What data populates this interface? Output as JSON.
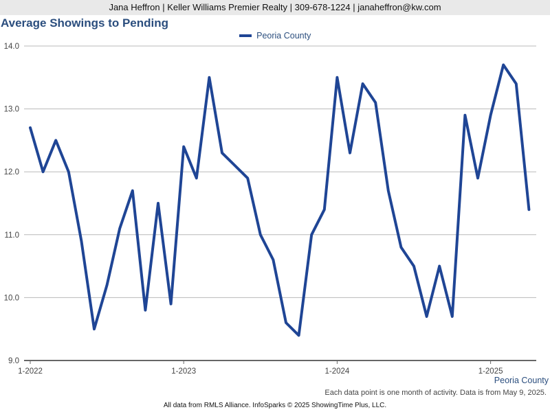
{
  "header": {
    "contact_line": "Jana Heffron | Keller Williams Premier Realty | 309-678-1224 | janaheffron@kw.com"
  },
  "footer": {
    "region_label": "Peoria County",
    "note": "Each data point is one month of activity. Data is from May 9, 2025.",
    "source": "All data from RMLS Alliance. InfoSparks © 2025 ShowingTime Plus, LLC."
  },
  "colors": {
    "line": "#1f4595",
    "title": "#2b4e7e",
    "grid": "#b8b8b8",
    "axis": "#666666"
  },
  "chart_data": {
    "type": "line",
    "title": "Average Showings to Pending",
    "xlabel": "",
    "ylabel": "",
    "ylim": [
      9.0,
      14.0
    ],
    "yticks": [
      "9.0",
      "10.0",
      "11.0",
      "12.0",
      "13.0",
      "14.0"
    ],
    "xtick_labels": [
      {
        "label": "1-2022",
        "index": 0
      },
      {
        "label": "1-2023",
        "index": 12
      },
      {
        "label": "1-2024",
        "index": 24
      },
      {
        "label": "1-2025",
        "index": 36
      }
    ],
    "grid": true,
    "legend_position": "top-center",
    "categories": [
      "1-2022",
      "2-2022",
      "3-2022",
      "4-2022",
      "5-2022",
      "6-2022",
      "7-2022",
      "8-2022",
      "9-2022",
      "10-2022",
      "11-2022",
      "12-2022",
      "1-2023",
      "2-2023",
      "3-2023",
      "4-2023",
      "5-2023",
      "6-2023",
      "7-2023",
      "8-2023",
      "9-2023",
      "10-2023",
      "11-2023",
      "12-2023",
      "1-2024",
      "2-2024",
      "3-2024",
      "4-2024",
      "5-2024",
      "6-2024",
      "7-2024",
      "8-2024",
      "9-2024",
      "10-2024",
      "11-2024",
      "12-2024",
      "1-2025",
      "2-2025",
      "3-2025",
      "4-2025"
    ],
    "series": [
      {
        "name": "Peoria County",
        "values": [
          12.7,
          12.0,
          12.5,
          12.0,
          10.9,
          9.5,
          10.2,
          11.1,
          11.7,
          9.8,
          11.5,
          9.9,
          12.4,
          11.9,
          13.5,
          12.3,
          12.1,
          11.9,
          11.0,
          10.6,
          9.6,
          9.4,
          11.0,
          11.4,
          13.5,
          12.3,
          13.4,
          13.1,
          11.7,
          10.8,
          10.5,
          9.7,
          10.5,
          9.7,
          12.9,
          11.9,
          12.9,
          13.7,
          13.4,
          11.4
        ]
      }
    ]
  }
}
